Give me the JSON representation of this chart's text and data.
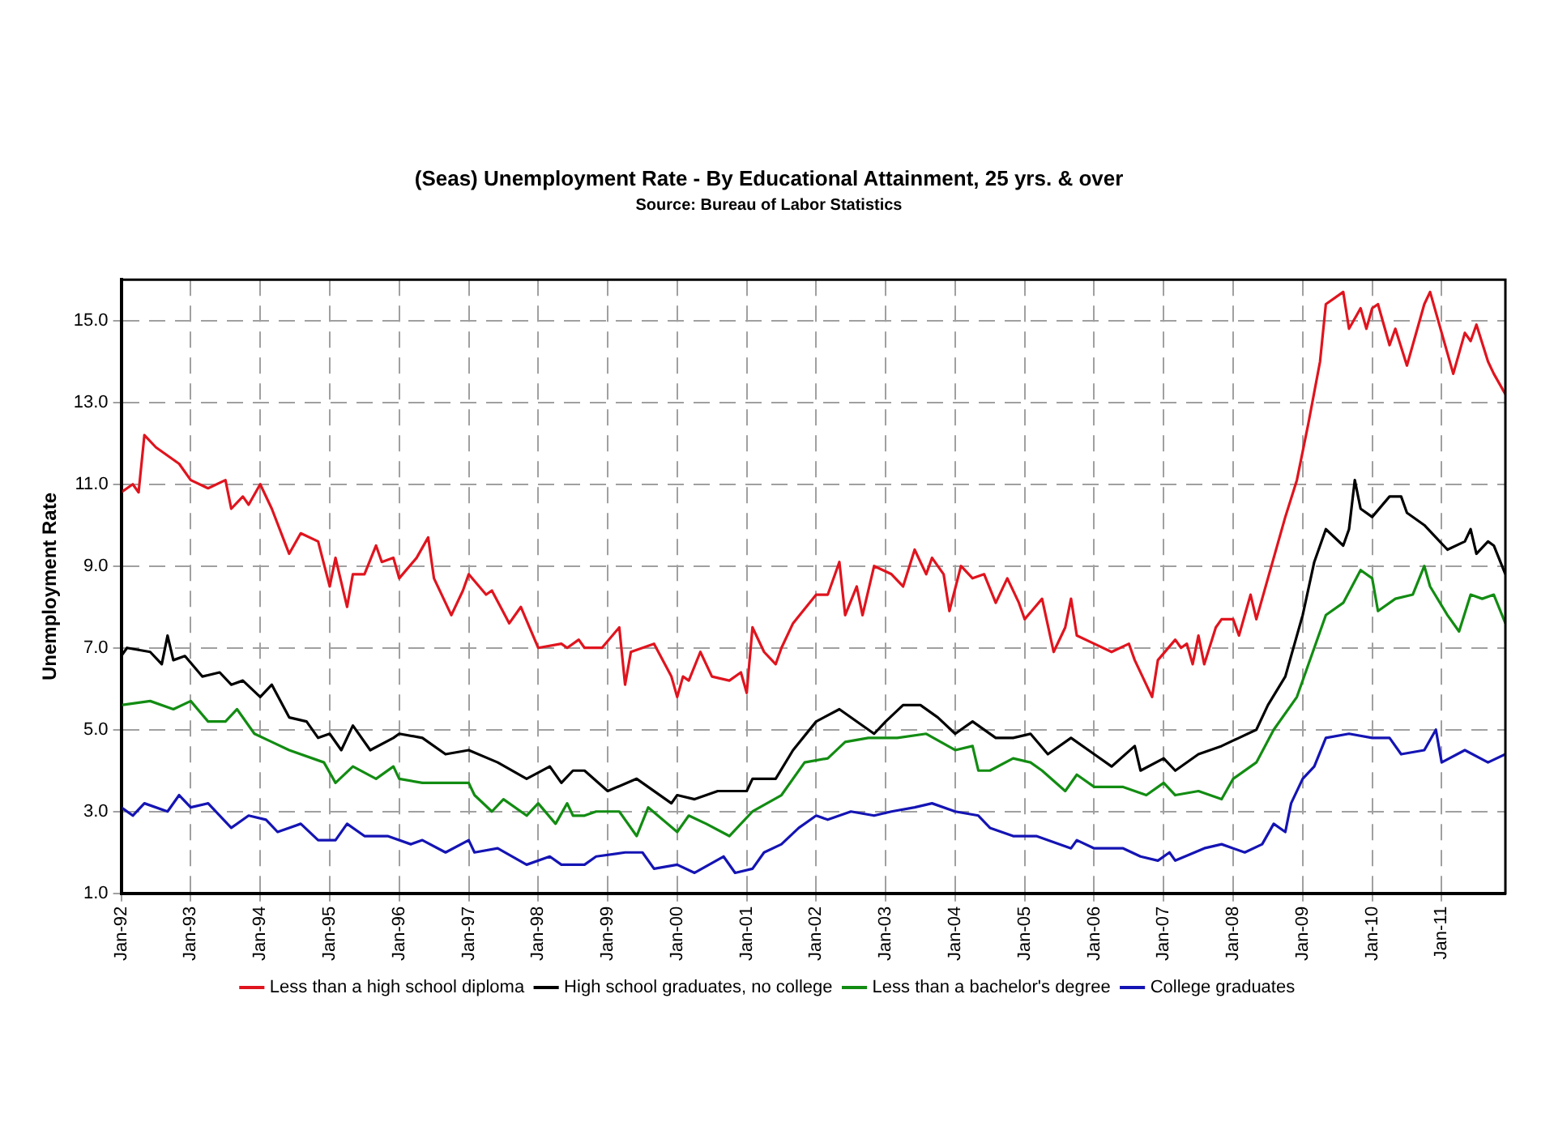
{
  "chart_data": {
    "type": "line",
    "title": "(Seas) Unemployment Rate - By Educational Attainment, 25 yrs. & over",
    "subtitle": "Source: Bureau of Labor Statistics",
    "ylabel": "Unemployment Rate",
    "xlim": [
      "1992-01",
      "2011-12"
    ],
    "ylim": [
      1,
      16
    ],
    "xticks": [
      {
        "value": "1992-01",
        "label": "Jan-92"
      },
      {
        "value": "1993-01",
        "label": "Jan-93"
      },
      {
        "value": "1994-01",
        "label": "Jan-94"
      },
      {
        "value": "1995-01",
        "label": "Jan-95"
      },
      {
        "value": "1996-01",
        "label": "Jan-96"
      },
      {
        "value": "1997-01",
        "label": "Jan-97"
      },
      {
        "value": "1998-01",
        "label": "Jan-98"
      },
      {
        "value": "1999-01",
        "label": "Jan-99"
      },
      {
        "value": "2000-01",
        "label": "Jan-00"
      },
      {
        "value": "2001-01",
        "label": "Jan-01"
      },
      {
        "value": "2002-01",
        "label": "Jan-02"
      },
      {
        "value": "2003-01",
        "label": "Jan-03"
      },
      {
        "value": "2004-01",
        "label": "Jan-04"
      },
      {
        "value": "2005-01",
        "label": "Jan-05"
      },
      {
        "value": "2006-01",
        "label": "Jan-06"
      },
      {
        "value": "2007-01",
        "label": "Jan-07"
      },
      {
        "value": "2008-01",
        "label": "Jan-08"
      },
      {
        "value": "2009-01",
        "label": "Jan-09"
      },
      {
        "value": "2010-01",
        "label": "Jan-10"
      },
      {
        "value": "2011-01",
        "label": "Jan-11"
      }
    ],
    "yticks": [
      {
        "value": 1,
        "label": "1.0"
      },
      {
        "value": 3,
        "label": "3.0"
      },
      {
        "value": 5,
        "label": "5.0"
      },
      {
        "value": 7,
        "label": "7.0"
      },
      {
        "value": 9,
        "label": "9.0"
      },
      {
        "value": 11,
        "label": "11.0"
      },
      {
        "value": 13,
        "label": "13.0"
      },
      {
        "value": 15,
        "label": "15.0"
      }
    ],
    "grid": true,
    "legend": "bottom",
    "marker": "none",
    "line_style": "solid",
    "series": [
      {
        "name": "Less than a high school diploma",
        "color": "#e0141e",
        "x": [
          "1992-01",
          "1992-03",
          "1992-04",
          "1992-05",
          "1992-07",
          "1992-11",
          "1993-01",
          "1993-04",
          "1993-07",
          "1993-08",
          "1993-10",
          "1993-11",
          "1994-01",
          "1994-03",
          "1994-06",
          "1994-08",
          "1994-11",
          "1995-01",
          "1995-02",
          "1995-04",
          "1995-05",
          "1995-07",
          "1995-09",
          "1995-10",
          "1995-12",
          "1996-01",
          "1996-04",
          "1996-06",
          "1996-07",
          "1996-10",
          "1996-12",
          "1997-01",
          "1997-04",
          "1997-05",
          "1997-08",
          "1997-10",
          "1998-01",
          "1998-05",
          "1998-06",
          "1998-08",
          "1998-09",
          "1998-12",
          "1999-03",
          "1999-04",
          "1999-05",
          "1999-09",
          "1999-12",
          "2000-01",
          "2000-02",
          "2000-03",
          "2000-05",
          "2000-07",
          "2000-10",
          "2000-12",
          "2001-01",
          "2001-02",
          "2001-04",
          "2001-06",
          "2001-07",
          "2001-09",
          "2002-01",
          "2002-03",
          "2002-05",
          "2002-06",
          "2002-08",
          "2002-09",
          "2002-11",
          "2003-02",
          "2003-04",
          "2003-06",
          "2003-08",
          "2003-09",
          "2003-11",
          "2003-12",
          "2004-02",
          "2004-04",
          "2004-06",
          "2004-08",
          "2004-10",
          "2004-12",
          "2005-01",
          "2005-04",
          "2005-06",
          "2005-08",
          "2005-09",
          "2005-10",
          "2006-01",
          "2006-04",
          "2006-07",
          "2006-08",
          "2006-11",
          "2006-12",
          "2007-03",
          "2007-04",
          "2007-05",
          "2007-06",
          "2007-07",
          "2007-08",
          "2007-10",
          "2007-11",
          "2008-01",
          "2008-02",
          "2008-04",
          "2008-05",
          "2008-07",
          "2008-09",
          "2008-10",
          "2008-12",
          "2009-02",
          "2009-04",
          "2009-05",
          "2009-08",
          "2009-09",
          "2009-11",
          "2009-12",
          "2010-01",
          "2010-02",
          "2010-04",
          "2010-05",
          "2010-07",
          "2010-10",
          "2010-11",
          "2011-02",
          "2011-03",
          "2011-05",
          "2011-06",
          "2011-07",
          "2011-09",
          "2011-10",
          "2011-12"
        ],
        "values": [
          10.8,
          11.0,
          10.8,
          12.2,
          11.9,
          11.5,
          11.1,
          10.9,
          11.1,
          10.4,
          10.7,
          10.5,
          11.0,
          10.4,
          9.3,
          9.8,
          9.6,
          8.5,
          9.2,
          8.0,
          8.8,
          8.8,
          9.5,
          9.1,
          9.2,
          8.7,
          9.2,
          9.7,
          8.7,
          7.8,
          8.4,
          8.8,
          8.3,
          8.4,
          7.6,
          8.0,
          7.0,
          7.1,
          7.0,
          7.2,
          7.0,
          7.0,
          7.5,
          6.1,
          6.9,
          7.1,
          6.3,
          5.8,
          6.3,
          6.2,
          6.9,
          6.3,
          6.2,
          6.4,
          5.9,
          7.5,
          6.9,
          6.6,
          7.0,
          7.6,
          8.3,
          8.3,
          9.1,
          7.8,
          8.5,
          7.8,
          9.0,
          8.8,
          8.5,
          9.4,
          8.8,
          9.2,
          8.8,
          7.9,
          9.0,
          8.7,
          8.8,
          8.1,
          8.7,
          8.1,
          7.7,
          8.2,
          6.9,
          7.5,
          8.2,
          7.3,
          7.1,
          6.9,
          7.1,
          6.7,
          5.8,
          6.7,
          7.2,
          7.0,
          7.1,
          6.6,
          7.3,
          6.6,
          7.5,
          7.7,
          7.7,
          7.3,
          8.3,
          7.7,
          8.7,
          9.7,
          10.2,
          11.1,
          12.5,
          14.0,
          15.4,
          15.7,
          14.8,
          15.3,
          14.8,
          15.3,
          15.4,
          14.4,
          14.8,
          13.9,
          15.4,
          15.7,
          14.2,
          13.7,
          14.7,
          14.5,
          14.9,
          14.0,
          13.7,
          13.2
        ]
      },
      {
        "name": "High school graduates, no college",
        "color": "#000000",
        "x": [
          "1992-01",
          "1992-02",
          "1992-06",
          "1992-08",
          "1992-09",
          "1992-10",
          "1992-12",
          "1993-03",
          "1993-06",
          "1993-08",
          "1993-10",
          "1994-01",
          "1994-03",
          "1994-06",
          "1994-09",
          "1994-11",
          "1995-01",
          "1995-03",
          "1995-05",
          "1995-08",
          "1995-12",
          "1996-01",
          "1996-05",
          "1996-09",
          "1997-01",
          "1997-06",
          "1997-11",
          "1998-03",
          "1998-05",
          "1998-07",
          "1998-09",
          "1999-01",
          "1999-06",
          "1999-12",
          "2000-01",
          "2000-04",
          "2000-08",
          "2001-01",
          "2001-02",
          "2001-06",
          "2001-09",
          "2002-01",
          "2002-05",
          "2002-11",
          "2003-01",
          "2003-04",
          "2003-07",
          "2003-10",
          "2004-01",
          "2004-04",
          "2004-08",
          "2004-11",
          "2005-02",
          "2005-05",
          "2005-09",
          "2006-01",
          "2006-04",
          "2006-08",
          "2006-09",
          "2007-01",
          "2007-03",
          "2007-07",
          "2007-11",
          "2008-02",
          "2008-05",
          "2008-07",
          "2008-10",
          "2009-01",
          "2009-03",
          "2009-05",
          "2009-08",
          "2009-09",
          "2009-10",
          "2009-11",
          "2010-01",
          "2010-04",
          "2010-06",
          "2010-07",
          "2010-10",
          "2010-12",
          "2011-02",
          "2011-05",
          "2011-06",
          "2011-07",
          "2011-09",
          "2011-10",
          "2011-12"
        ],
        "values": [
          6.8,
          7.0,
          6.9,
          6.6,
          7.3,
          6.7,
          6.8,
          6.3,
          6.4,
          6.1,
          6.2,
          5.8,
          6.1,
          5.3,
          5.2,
          4.8,
          4.9,
          4.5,
          5.1,
          4.5,
          4.8,
          4.9,
          4.8,
          4.4,
          4.5,
          4.2,
          3.8,
          4.1,
          3.7,
          4.0,
          4.0,
          3.5,
          3.8,
          3.2,
          3.4,
          3.3,
          3.5,
          3.5,
          3.8,
          3.8,
          4.5,
          5.2,
          5.5,
          4.9,
          5.2,
          5.6,
          5.6,
          5.3,
          4.9,
          5.2,
          4.8,
          4.8,
          4.9,
          4.4,
          4.8,
          4.4,
          4.1,
          4.6,
          4.0,
          4.3,
          4.0,
          4.4,
          4.6,
          4.8,
          5.0,
          5.6,
          6.3,
          7.8,
          9.1,
          9.9,
          9.5,
          9.9,
          11.1,
          10.4,
          10.2,
          10.7,
          10.7,
          10.3,
          10.0,
          9.7,
          9.4,
          9.6,
          9.9,
          9.3,
          9.6,
          9.5,
          8.8
        ]
      },
      {
        "name": "Less than a bachelor's degree",
        "color": "#128c12",
        "x": [
          "1992-01",
          "1992-06",
          "1992-10",
          "1993-01",
          "1993-04",
          "1993-07",
          "1993-09",
          "1993-12",
          "1994-03",
          "1994-06",
          "1994-12",
          "1995-02",
          "1995-05",
          "1995-09",
          "1995-12",
          "1996-01",
          "1996-05",
          "1997-01",
          "1997-02",
          "1997-05",
          "1997-07",
          "1997-11",
          "1998-01",
          "1998-04",
          "1998-06",
          "1998-07",
          "1998-09",
          "1998-11",
          "1999-03",
          "1999-06",
          "1999-08",
          "2000-01",
          "2000-03",
          "2000-06",
          "2000-10",
          "2001-02",
          "2001-07",
          "2001-11",
          "2002-03",
          "2002-06",
          "2002-10",
          "2002-12",
          "2003-03",
          "2003-08",
          "2004-01",
          "2004-04",
          "2004-05",
          "2004-07",
          "2004-11",
          "2005-02",
          "2005-04",
          "2005-08",
          "2005-10",
          "2006-01",
          "2006-06",
          "2006-10",
          "2007-01",
          "2007-03",
          "2007-07",
          "2007-11",
          "2008-01",
          "2008-05",
          "2008-08",
          "2008-12",
          "2009-03",
          "2009-05",
          "2009-08",
          "2009-11",
          "2010-01",
          "2010-02",
          "2010-05",
          "2010-08",
          "2010-10",
          "2010-11",
          "2011-02",
          "2011-04",
          "2011-06",
          "2011-08",
          "2011-10",
          "2011-12"
        ],
        "values": [
          5.6,
          5.7,
          5.5,
          5.7,
          5.2,
          5.2,
          5.5,
          4.9,
          4.7,
          4.5,
          4.2,
          3.7,
          4.1,
          3.8,
          4.1,
          3.8,
          3.7,
          3.7,
          3.4,
          3.0,
          3.3,
          2.9,
          3.2,
          2.7,
          3.2,
          2.9,
          2.9,
          3.0,
          3.0,
          2.4,
          3.1,
          2.5,
          2.9,
          2.7,
          2.4,
          3.0,
          3.4,
          4.2,
          4.3,
          4.7,
          4.8,
          4.8,
          4.8,
          4.9,
          4.5,
          4.6,
          4.0,
          4.0,
          4.3,
          4.2,
          4.0,
          3.5,
          3.9,
          3.6,
          3.6,
          3.4,
          3.7,
          3.4,
          3.5,
          3.3,
          3.8,
          4.2,
          5.0,
          5.8,
          7.0,
          7.8,
          8.1,
          8.9,
          8.7,
          7.9,
          8.2,
          8.3,
          9.0,
          8.5,
          7.8,
          7.4,
          8.3,
          8.2,
          8.3,
          7.6
        ]
      },
      {
        "name": "College graduates",
        "color": "#1414b4",
        "x": [
          "1992-01",
          "1992-03",
          "1992-05",
          "1992-09",
          "1992-11",
          "1993-01",
          "1993-04",
          "1993-08",
          "1993-11",
          "1994-02",
          "1994-04",
          "1994-08",
          "1994-11",
          "1995-02",
          "1995-04",
          "1995-07",
          "1995-11",
          "1996-03",
          "1996-05",
          "1996-09",
          "1997-01",
          "1997-02",
          "1997-06",
          "1997-11",
          "1998-03",
          "1998-05",
          "1998-09",
          "1998-11",
          "1999-04",
          "1999-07",
          "1999-09",
          "2000-01",
          "2000-04",
          "2000-09",
          "2000-11",
          "2001-02",
          "2001-04",
          "2001-07",
          "2001-10",
          "2002-01",
          "2002-03",
          "2002-07",
          "2002-11",
          "2003-02",
          "2003-06",
          "2003-09",
          "2004-01",
          "2004-05",
          "2004-07",
          "2004-11",
          "2005-03",
          "2005-09",
          "2005-10",
          "2006-01",
          "2006-06",
          "2006-09",
          "2006-12",
          "2007-02",
          "2007-03",
          "2007-08",
          "2007-11",
          "2008-03",
          "2008-06",
          "2008-08",
          "2008-10",
          "2008-11",
          "2009-01",
          "2009-03",
          "2009-05",
          "2009-09",
          "2010-01",
          "2010-04",
          "2010-06",
          "2010-10",
          "2010-12",
          "2011-01",
          "2011-05",
          "2011-09",
          "2011-12"
        ],
        "values": [
          3.1,
          2.9,
          3.2,
          3.0,
          3.4,
          3.1,
          3.2,
          2.6,
          2.9,
          2.8,
          2.5,
          2.7,
          2.3,
          2.3,
          2.7,
          2.4,
          2.4,
          2.2,
          2.3,
          2.0,
          2.3,
          2.0,
          2.1,
          1.7,
          1.9,
          1.7,
          1.7,
          1.9,
          2.0,
          2.0,
          1.6,
          1.7,
          1.5,
          1.9,
          1.5,
          1.6,
          2.0,
          2.2,
          2.6,
          2.9,
          2.8,
          3.0,
          2.9,
          3.0,
          3.1,
          3.2,
          3.0,
          2.9,
          2.6,
          2.4,
          2.4,
          2.1,
          2.3,
          2.1,
          2.1,
          1.9,
          1.8,
          2.0,
          1.8,
          2.1,
          2.2,
          2.0,
          2.2,
          2.7,
          2.5,
          3.2,
          3.8,
          4.1,
          4.8,
          4.9,
          4.8,
          4.8,
          4.4,
          4.5,
          5.0,
          4.2,
          4.5,
          4.2,
          4.4
        ]
      }
    ]
  }
}
